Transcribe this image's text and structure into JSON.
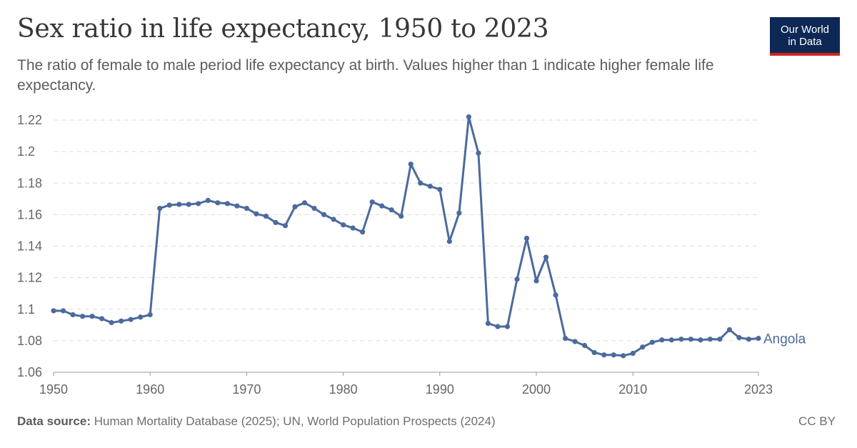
{
  "header": {
    "title": "Sex ratio in life expectancy, 1950 to 2023",
    "subtitle": "The ratio of female to male period life expectancy at birth. Values higher than 1 indicate higher female life expectancy."
  },
  "logo": {
    "line1": "Our World",
    "line2": "in Data"
  },
  "footer": {
    "source_label": "Data source:",
    "source_text": "Human Mortality Database (2025); UN, World Population Prospects (2024)",
    "license": "CC BY"
  },
  "colors": {
    "series": "#4c6a9c",
    "grid": "#dddddd",
    "logo_bg": "#0d2855",
    "logo_accent": "#ce261e"
  },
  "chart_data": {
    "type": "line",
    "title": "Sex ratio in life expectancy, 1950 to 2023",
    "xlabel": "",
    "ylabel": "",
    "xlim": [
      1950,
      2023
    ],
    "ylim": [
      1.06,
      1.22
    ],
    "x_ticks": [
      1950,
      1960,
      1970,
      1980,
      1990,
      2000,
      2010,
      2023
    ],
    "y_ticks": [
      1.06,
      1.08,
      1.1,
      1.12,
      1.14,
      1.16,
      1.18,
      1.2,
      1.22
    ],
    "grid": "horizontal dashed",
    "legend": "inline label at line end",
    "series": [
      {
        "name": "Angola",
        "x": [
          1950,
          1951,
          1952,
          1953,
          1954,
          1955,
          1956,
          1957,
          1958,
          1959,
          1960,
          1961,
          1962,
          1963,
          1964,
          1965,
          1966,
          1967,
          1968,
          1969,
          1970,
          1971,
          1972,
          1973,
          1974,
          1975,
          1976,
          1977,
          1978,
          1979,
          1980,
          1981,
          1982,
          1983,
          1984,
          1985,
          1986,
          1987,
          1988,
          1989,
          1990,
          1991,
          1992,
          1993,
          1994,
          1995,
          1996,
          1997,
          1998,
          1999,
          2000,
          2001,
          2002,
          2003,
          2004,
          2005,
          2006,
          2007,
          2008,
          2009,
          2010,
          2011,
          2012,
          2013,
          2014,
          2015,
          2016,
          2017,
          2018,
          2019,
          2020,
          2021,
          2022,
          2023
        ],
        "values": [
          1.099,
          1.099,
          1.0965,
          1.0955,
          1.0955,
          1.094,
          1.0915,
          1.0925,
          1.0935,
          1.095,
          1.0965,
          1.164,
          1.166,
          1.1665,
          1.1665,
          1.167,
          1.169,
          1.1675,
          1.167,
          1.1655,
          1.164,
          1.1605,
          1.159,
          1.155,
          1.153,
          1.165,
          1.1675,
          1.164,
          1.16,
          1.157,
          1.1535,
          1.1515,
          1.149,
          1.168,
          1.1655,
          1.163,
          1.159,
          1.192,
          1.18,
          1.178,
          1.176,
          1.143,
          1.161,
          1.222,
          1.199,
          1.091,
          1.089,
          1.089,
          1.119,
          1.145,
          1.118,
          1.133,
          1.109,
          1.0815,
          1.0795,
          1.077,
          1.0725,
          1.071,
          1.071,
          1.0705,
          1.072,
          1.076,
          1.079,
          1.0805,
          1.0805,
          1.081,
          1.081,
          1.0805,
          1.081,
          1.081,
          1.087,
          1.082,
          1.081,
          1.0815
        ]
      }
    ]
  }
}
